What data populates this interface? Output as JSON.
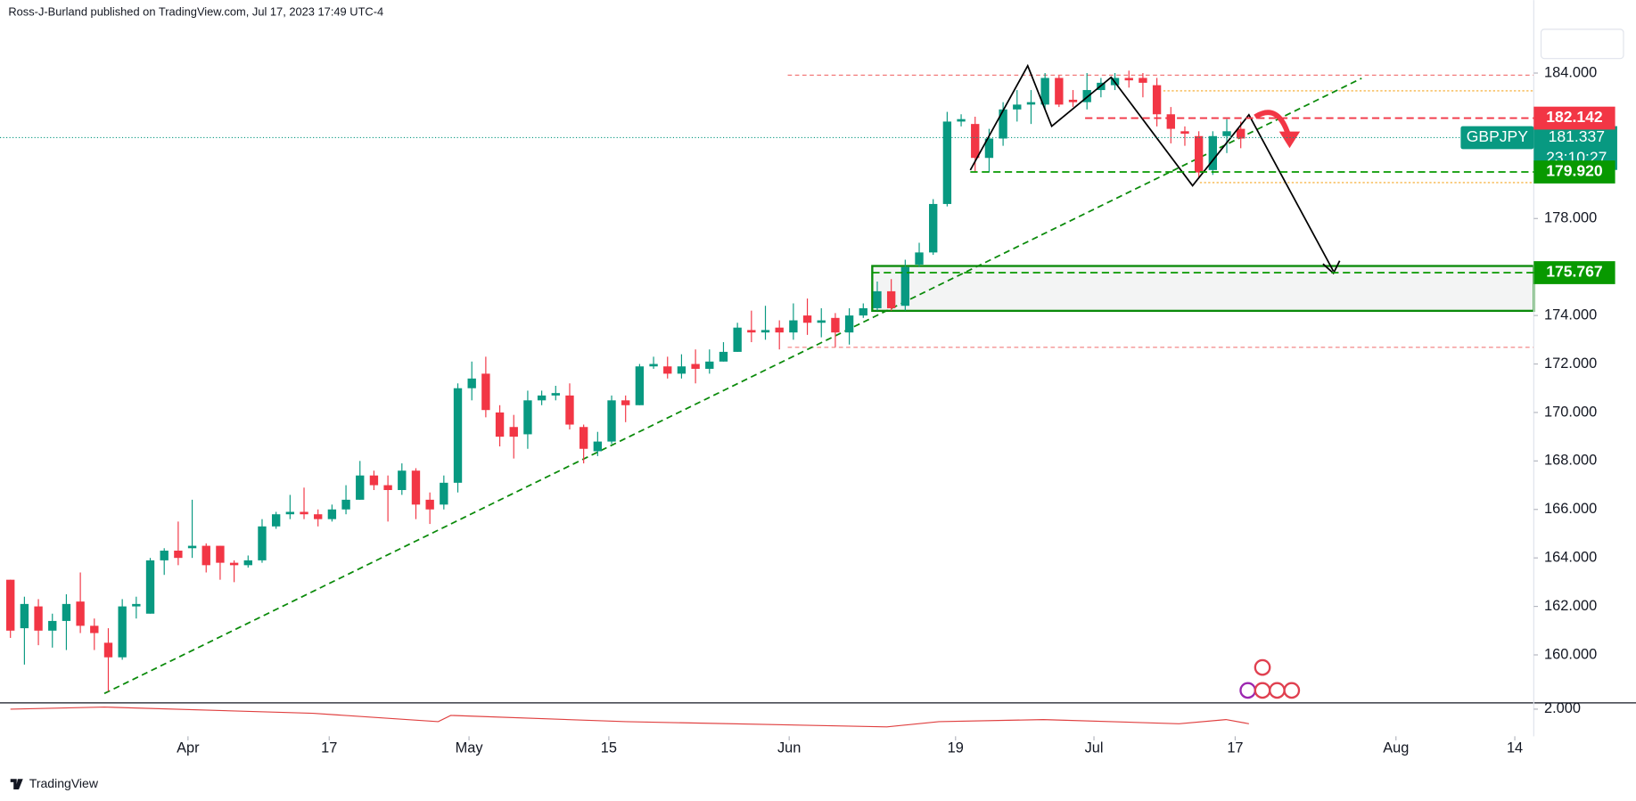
{
  "header": "Ross-J-Burland published on TradingView.com, Jul 17, 2023 17:49 UTC-4",
  "footer": "TradingView",
  "chart_data": {
    "type": "candlestick",
    "up_color": "#089981",
    "down_color": "#f23645",
    "ylim": [
      158.02,
      187.01
    ],
    "yticks": [
      {
        "value": 184,
        "label": "184.000"
      },
      {
        "value": 178,
        "label": "178.000"
      },
      {
        "value": 174,
        "label": "174.000"
      },
      {
        "value": 172,
        "label": "172.000"
      },
      {
        "value": 170,
        "label": "170.000"
      },
      {
        "value": 168,
        "label": "168.000"
      },
      {
        "value": 166,
        "label": "166.000"
      },
      {
        "value": 164,
        "label": "164.000"
      },
      {
        "value": 162,
        "label": "162.000"
      },
      {
        "value": 160,
        "label": "160.000"
      }
    ],
    "xticks": [
      {
        "value": 12.7,
        "label": "Apr"
      },
      {
        "value": 22.8,
        "label": "17"
      },
      {
        "value": 32.8,
        "label": "May"
      },
      {
        "value": 42.8,
        "label": "15"
      },
      {
        "value": 55.7,
        "label": "Jun"
      },
      {
        "value": 67.6,
        "label": "19"
      },
      {
        "value": 77.5,
        "label": "Jul"
      },
      {
        "value": 87.6,
        "label": "17"
      },
      {
        "value": 99.1,
        "label": "Aug"
      },
      {
        "value": 107.6,
        "label": "14"
      }
    ],
    "ohlc": [
      [
        163.1,
        163.1,
        160.7,
        161.0
      ],
      [
        161.1,
        162.4,
        159.6,
        162.1
      ],
      [
        162.0,
        162.3,
        160.4,
        161.0
      ],
      [
        161.0,
        161.7,
        160.3,
        161.4
      ],
      [
        161.4,
        162.5,
        160.2,
        162.1
      ],
      [
        162.2,
        163.4,
        160.9,
        161.2
      ],
      [
        161.2,
        161.5,
        160.2,
        160.9
      ],
      [
        160.5,
        161.1,
        158.5,
        159.9
      ],
      [
        159.9,
        162.3,
        159.8,
        162.0
      ],
      [
        162.0,
        162.4,
        161.5,
        162.1
      ],
      [
        161.7,
        164.0,
        161.7,
        163.9
      ],
      [
        163.9,
        164.4,
        163.3,
        164.3
      ],
      [
        164.3,
        165.5,
        163.7,
        164.0
      ],
      [
        164.4,
        166.4,
        164.0,
        164.5
      ],
      [
        164.5,
        164.6,
        163.4,
        163.7
      ],
      [
        164.5,
        164.5,
        163.1,
        163.8
      ],
      [
        163.8,
        163.9,
        163.0,
        163.7
      ],
      [
        163.7,
        164.1,
        163.6,
        163.9
      ],
      [
        163.9,
        165.6,
        163.8,
        165.3
      ],
      [
        165.3,
        165.9,
        165.2,
        165.8
      ],
      [
        165.8,
        166.6,
        165.6,
        165.9
      ],
      [
        165.9,
        166.9,
        165.6,
        165.8
      ],
      [
        165.8,
        166.0,
        165.3,
        165.6
      ],
      [
        165.6,
        166.2,
        165.5,
        166.0
      ],
      [
        166.0,
        167.0,
        165.8,
        166.4
      ],
      [
        166.4,
        168.0,
        166.4,
        167.4
      ],
      [
        167.4,
        167.6,
        166.8,
        167.0
      ],
      [
        167.0,
        167.4,
        165.5,
        166.8
      ],
      [
        166.8,
        167.9,
        166.6,
        167.6
      ],
      [
        167.6,
        167.7,
        165.6,
        166.2
      ],
      [
        166.4,
        166.7,
        165.4,
        166.0
      ],
      [
        166.2,
        167.4,
        166.0,
        167.1
      ],
      [
        167.1,
        171.2,
        166.7,
        171.0
      ],
      [
        171.0,
        172.1,
        170.5,
        171.4
      ],
      [
        171.6,
        172.3,
        169.8,
        170.1
      ],
      [
        170.0,
        170.3,
        168.6,
        169.0
      ],
      [
        169.4,
        169.9,
        168.1,
        169.0
      ],
      [
        169.1,
        170.9,
        168.5,
        170.5
      ],
      [
        170.5,
        170.9,
        170.3,
        170.7
      ],
      [
        170.7,
        171.1,
        170.5,
        170.8
      ],
      [
        170.7,
        171.2,
        169.3,
        169.5
      ],
      [
        169.4,
        169.5,
        167.9,
        168.5
      ],
      [
        168.4,
        169.2,
        168.2,
        168.8
      ],
      [
        168.8,
        170.7,
        168.7,
        170.5
      ],
      [
        170.5,
        170.7,
        169.6,
        170.3
      ],
      [
        170.3,
        172.0,
        170.3,
        171.9
      ],
      [
        171.9,
        172.3,
        171.8,
        172.0
      ],
      [
        171.9,
        172.3,
        171.4,
        171.6
      ],
      [
        171.6,
        172.4,
        171.4,
        171.9
      ],
      [
        172.0,
        172.6,
        171.2,
        171.8
      ],
      [
        171.8,
        172.6,
        171.6,
        172.1
      ],
      [
        172.1,
        172.9,
        172.1,
        172.5
      ],
      [
        172.5,
        173.7,
        172.5,
        173.5
      ],
      [
        173.4,
        174.2,
        172.9,
        173.3
      ],
      [
        173.3,
        174.4,
        173.0,
        173.4
      ],
      [
        173.5,
        173.8,
        172.6,
        173.3
      ],
      [
        173.3,
        174.5,
        173.0,
        173.8
      ],
      [
        174.0,
        174.7,
        173.2,
        173.7
      ],
      [
        173.7,
        174.3,
        173.1,
        173.8
      ],
      [
        173.9,
        174.1,
        172.7,
        173.3
      ],
      [
        173.3,
        174.3,
        172.8,
        174.0
      ],
      [
        174.0,
        174.5,
        173.9,
        174.3
      ],
      [
        174.3,
        175.4,
        174.2,
        175.0
      ],
      [
        175.0,
        175.5,
        174.2,
        174.3
      ],
      [
        174.4,
        176.3,
        174.2,
        176.0
      ],
      [
        176.1,
        177.0,
        176.0,
        176.6
      ],
      [
        176.6,
        178.8,
        176.5,
        178.6
      ],
      [
        178.6,
        182.4,
        178.5,
        182.0
      ],
      [
        182.0,
        182.3,
        181.8,
        182.1
      ],
      [
        181.9,
        182.2,
        179.9,
        180.5
      ],
      [
        180.5,
        181.7,
        179.9,
        181.3
      ],
      [
        181.3,
        182.8,
        181.0,
        182.5
      ],
      [
        182.5,
        183.3,
        182.0,
        182.7
      ],
      [
        182.7,
        183.3,
        181.9,
        182.8
      ],
      [
        182.7,
        184.0,
        182.5,
        183.8
      ],
      [
        183.8,
        183.9,
        182.6,
        182.7
      ],
      [
        182.9,
        183.3,
        182.6,
        182.8
      ],
      [
        182.8,
        184.0,
        182.5,
        183.3
      ],
      [
        183.3,
        183.8,
        183.0,
        183.6
      ],
      [
        183.5,
        184.0,
        183.3,
        183.8
      ],
      [
        183.8,
        184.1,
        183.4,
        183.7
      ],
      [
        183.8,
        184.0,
        183.0,
        183.6
      ],
      [
        183.5,
        183.8,
        181.8,
        182.3
      ],
      [
        182.3,
        182.6,
        181.1,
        181.7
      ],
      [
        181.6,
        181.8,
        181.0,
        181.5
      ],
      [
        181.4,
        181.6,
        179.7,
        179.9
      ],
      [
        180.0,
        181.6,
        179.8,
        181.4
      ],
      [
        181.4,
        182.1,
        180.7,
        181.6
      ],
      [
        181.7,
        182.0,
        180.9,
        181.3
      ]
    ],
    "levels": {
      "values": [
        182.142,
        179.92,
        175.767
      ],
      "value_labels": [
        "182.142",
        "179.920",
        "175.767"
      ],
      "colors": [
        "#f23645",
        "#089900",
        "#089900"
      ]
    },
    "last_price": {
      "symbol": "GBPJPY",
      "value": 181.337,
      "label": "181.337",
      "countdown": "23:10:27",
      "color": "#089981"
    },
    "lower_pane": {
      "yticks": [
        {
          "value": 2,
          "label": "2.000"
        }
      ]
    }
  }
}
